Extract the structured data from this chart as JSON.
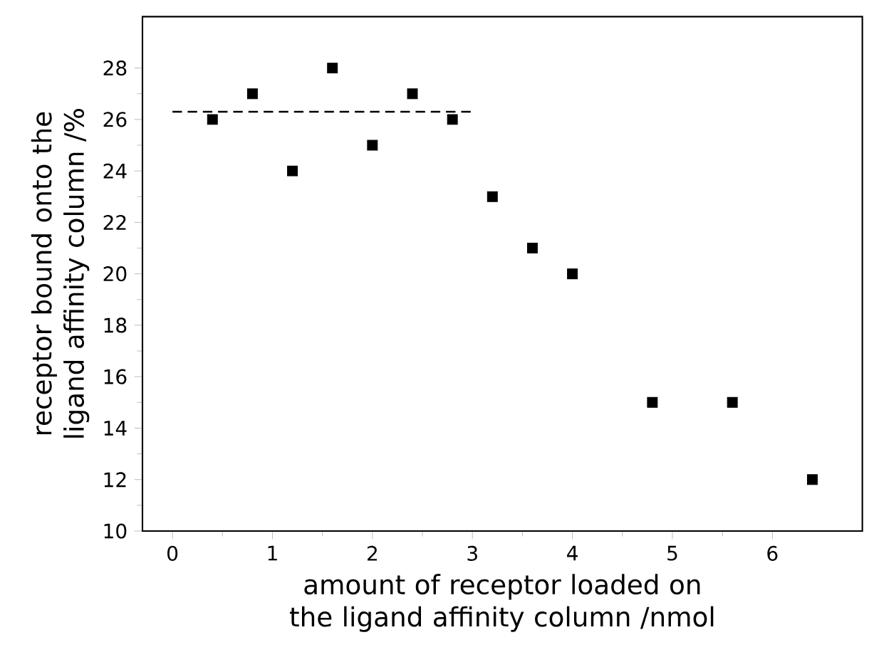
{
  "chart_data": {
    "type": "scatter",
    "xlabel": "amount of receptor loaded on the ligand affinity column /nmol",
    "ylabel": "receptor bound onto the ligand affinity column /%",
    "xlim": [
      -0.3,
      6.9
    ],
    "ylim": [
      10,
      30
    ],
    "xticks": [
      0,
      1,
      2,
      3,
      4,
      5,
      6
    ],
    "yticks": [
      10,
      12,
      14,
      16,
      18,
      20,
      22,
      24,
      26,
      28
    ],
    "series": [
      {
        "marker": "square",
        "color": "#000000",
        "x": [
          0.4,
          0.8,
          1.2,
          1.6,
          2.0,
          2.4,
          2.8,
          3.2,
          3.6,
          4.0,
          4.8,
          5.6,
          6.4
        ],
        "values": [
          26,
          27,
          24,
          28,
          25,
          27,
          26,
          23,
          21,
          20,
          15,
          15,
          12
        ]
      },
      {
        "type": "line",
        "marker": "none",
        "line_style": "dashed",
        "color": "#000000",
        "x": [
          0,
          3
        ],
        "values": [
          26.3,
          26.3
        ]
      }
    ]
  }
}
